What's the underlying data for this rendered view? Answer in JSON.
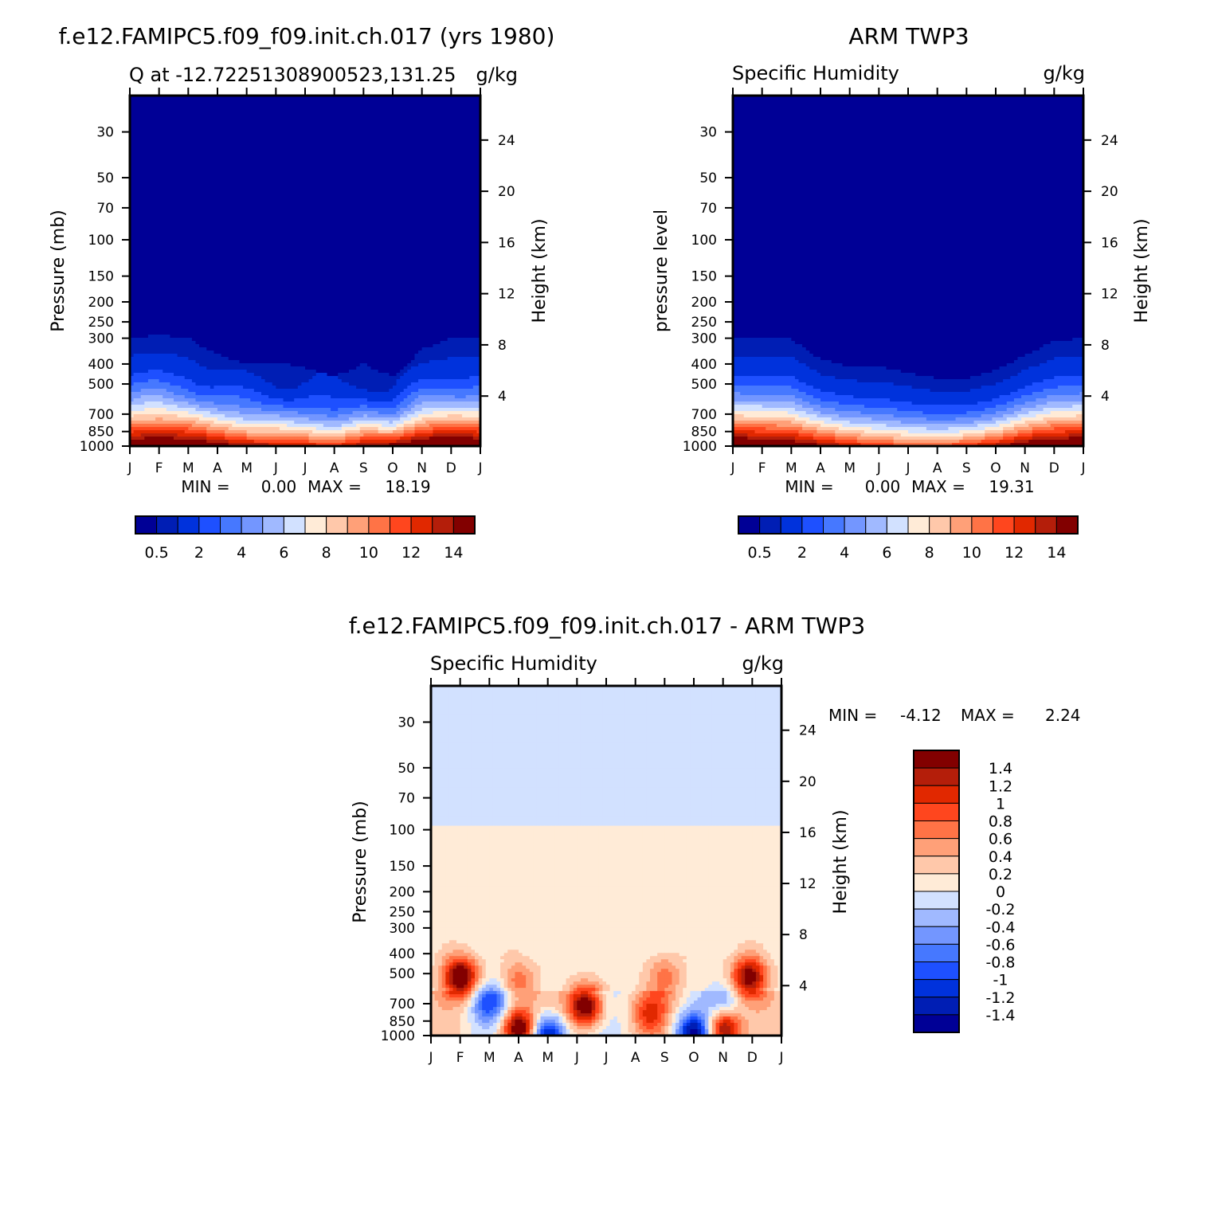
{
  "chart_data": [
    {
      "type": "heatmap",
      "id": "p1",
      "title": "f.e12.FAMIPC5.f09_f09.init.ch.017 (yrs 1980)",
      "left_label": "Q at -12.72251308900523,131.25",
      "right_label": "g/kg",
      "ylabel": "Pressure (mb)",
      "right_axis_label": "Height (km)",
      "stats": {
        "min_label": "MIN =",
        "min": "0.00",
        "max_label": "MAX =",
        "max": "18.19"
      },
      "x_months": [
        "J",
        "F",
        "M",
        "A",
        "M",
        "J",
        "J",
        "A",
        "S",
        "O",
        "N",
        "D",
        "J"
      ],
      "pressure_ticks": [
        30,
        50,
        70,
        100,
        150,
        200,
        250,
        300,
        400,
        500,
        700,
        850,
        1000
      ],
      "height_ticks": [
        4,
        8,
        12,
        16,
        20,
        24
      ],
      "field_key": "model",
      "surface_max": [
        16.5,
        16.8,
        16.5,
        15.2,
        13.8,
        13.5,
        12.8,
        12.2,
        14.0,
        14.8,
        16.8,
        17.2,
        16.5
      ],
      "moist_top_hpa": [
        300,
        290,
        300,
        360,
        400,
        390,
        420,
        460,
        400,
        460,
        340,
        300,
        300
      ]
    },
    {
      "type": "heatmap",
      "id": "p2",
      "title": "ARM TWP3",
      "left_label": "Specific Humidity",
      "right_label": "g/kg",
      "ylabel": "pressure level",
      "right_axis_label": "Height (km)",
      "stats": {
        "min_label": "MIN =",
        "min": "0.00",
        "max_label": "MAX =",
        "max": "19.31"
      },
      "x_months": [
        "J",
        "F",
        "M",
        "A",
        "M",
        "J",
        "J",
        "A",
        "S",
        "O",
        "N",
        "D",
        "J"
      ],
      "pressure_ticks": [
        30,
        50,
        70,
        100,
        150,
        200,
        250,
        300,
        400,
        500,
        700,
        850,
        1000
      ],
      "height_ticks": [
        4,
        8,
        12,
        16,
        20,
        24
      ],
      "field_key": "obs",
      "surface_max": [
        16.8,
        16.5,
        15.8,
        14.5,
        13.0,
        11.8,
        11.2,
        11.2,
        12.0,
        13.6,
        15.6,
        16.6,
        16.8
      ],
      "moist_top_hpa": [
        300,
        300,
        300,
        380,
        410,
        410,
        440,
        470,
        470,
        430,
        360,
        310,
        300
      ]
    },
    {
      "type": "heatmap",
      "id": "p3",
      "title": "f.e12.FAMIPC5.f09_f09.init.ch.017 - ARM TWP3",
      "left_label": "Specific Humidity",
      "right_label": "g/kg",
      "ylabel": "Pressure (mb)",
      "right_axis_label": "Height (km)",
      "stats": {
        "min_label": "MIN =",
        "min": "-4.12",
        "max_label": "MAX =",
        "max": "2.24"
      },
      "x_months": [
        "J",
        "F",
        "M",
        "A",
        "M",
        "J",
        "J",
        "A",
        "S",
        "O",
        "N",
        "D",
        "J"
      ],
      "pressure_ticks": [
        30,
        50,
        70,
        100,
        150,
        200,
        250,
        300,
        400,
        500,
        700,
        850,
        1000
      ],
      "height_ticks": [
        4,
        8,
        12,
        16,
        20,
        24
      ],
      "field_key": "diff",
      "diff_blobs": [
        {
          "month": 1.0,
          "hpa": 520,
          "amp": 1.7
        },
        {
          "month": 10.9,
          "hpa": 520,
          "amp": 1.5
        },
        {
          "month": 5.3,
          "hpa": 720,
          "amp": 1.7
        },
        {
          "month": 3.0,
          "hpa": 930,
          "amp": 1.7
        },
        {
          "month": 10.0,
          "hpa": 920,
          "amp": 1.6
        },
        {
          "month": 7.5,
          "hpa": 780,
          "amp": 0.8
        },
        {
          "month": 8.0,
          "hpa": 520,
          "amp": 0.6
        },
        {
          "month": 3.0,
          "hpa": 540,
          "amp": 0.6
        },
        {
          "month": 2.0,
          "hpa": 690,
          "amp": -0.9
        },
        {
          "month": 4.0,
          "hpa": 990,
          "amp": -1.6
        },
        {
          "month": 9.0,
          "hpa": 980,
          "amp": -1.6
        },
        {
          "month": 10.0,
          "hpa": 700,
          "amp": -0.5
        }
      ]
    }
  ],
  "colorbar_seq": {
    "labels": [
      "0.5",
      "2",
      "4",
      "6",
      "8",
      "10",
      "12",
      "14"
    ],
    "levels": [
      0.5,
      1,
      2,
      3,
      4,
      5,
      6,
      7,
      8,
      9,
      10,
      11,
      12,
      13,
      14,
      15
    ],
    "colors": [
      "#000096",
      "#001eb4",
      "#0032dc",
      "#1e50ff",
      "#4678ff",
      "#7396ff",
      "#a0b9ff",
      "#d2e1ff",
      "#ffebd7",
      "#ffc8aa",
      "#ffa078",
      "#ff7346",
      "#ff461e",
      "#e12800",
      "#b41e0a",
      "#820000"
    ]
  },
  "colorbar_div": {
    "labels": [
      "1.4",
      "1.2",
      "1",
      "0.8",
      "0.6",
      "0.4",
      "0.2",
      "0",
      "-0.2",
      "-0.4",
      "-0.6",
      "-0.8",
      "-1",
      "-1.2",
      "-1.4"
    ],
    "levels": [
      -1.4,
      -1.2,
      -1.0,
      -0.8,
      -0.6,
      -0.4,
      -0.2,
      0,
      0.2,
      0.4,
      0.6,
      0.8,
      1.0,
      1.2,
      1.4
    ],
    "colors": [
      "#000096",
      "#001eb4",
      "#0032dc",
      "#1e50ff",
      "#4678ff",
      "#7396ff",
      "#a0b9ff",
      "#d2e1ff",
      "#ffebd7",
      "#ffc8aa",
      "#ffa078",
      "#ff7346",
      "#ff461e",
      "#e12800",
      "#b41e0a",
      "#820000"
    ]
  }
}
